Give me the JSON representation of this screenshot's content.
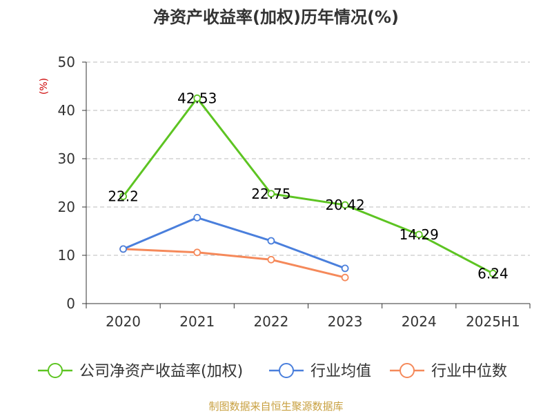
{
  "colors": {
    "company": "#5dc422",
    "industry_avg": "#4a7fdc",
    "industry_median": "#f5895a",
    "grid": "#bbbbbb",
    "axis": "#333333",
    "ylabel": "#cc0000",
    "source": "#c8a040"
  },
  "chart_data": {
    "type": "line",
    "title": "净资产收益率(加权)历年情况(%)",
    "ylabel": "(%)",
    "categories": [
      "2020",
      "2021",
      "2022",
      "2023",
      "2024",
      "2025H1"
    ],
    "ylim": [
      0,
      50
    ],
    "yticks": [
      "0",
      "10",
      "20",
      "30",
      "40",
      "50"
    ],
    "grid": true,
    "legend_position": "bottom",
    "series": [
      {
        "name": "公司净资产收益率(加权)",
        "color": "#5dc422",
        "values": [
          22.2,
          42.53,
          22.75,
          20.42,
          14.29,
          6.24
        ],
        "labels": [
          "22.2",
          "42.53",
          "22.75",
          "20.42",
          "14.29",
          "6.24"
        ]
      },
      {
        "name": "行业均值",
        "color": "#4a7fdc",
        "values": [
          11.3,
          17.8,
          13.0,
          7.3,
          null,
          null
        ]
      },
      {
        "name": "行业中位数",
        "color": "#f5895a",
        "values": [
          11.3,
          10.6,
          9.1,
          5.4,
          null,
          null
        ]
      }
    ],
    "source": "制图数据来自恒生聚源数据库"
  }
}
